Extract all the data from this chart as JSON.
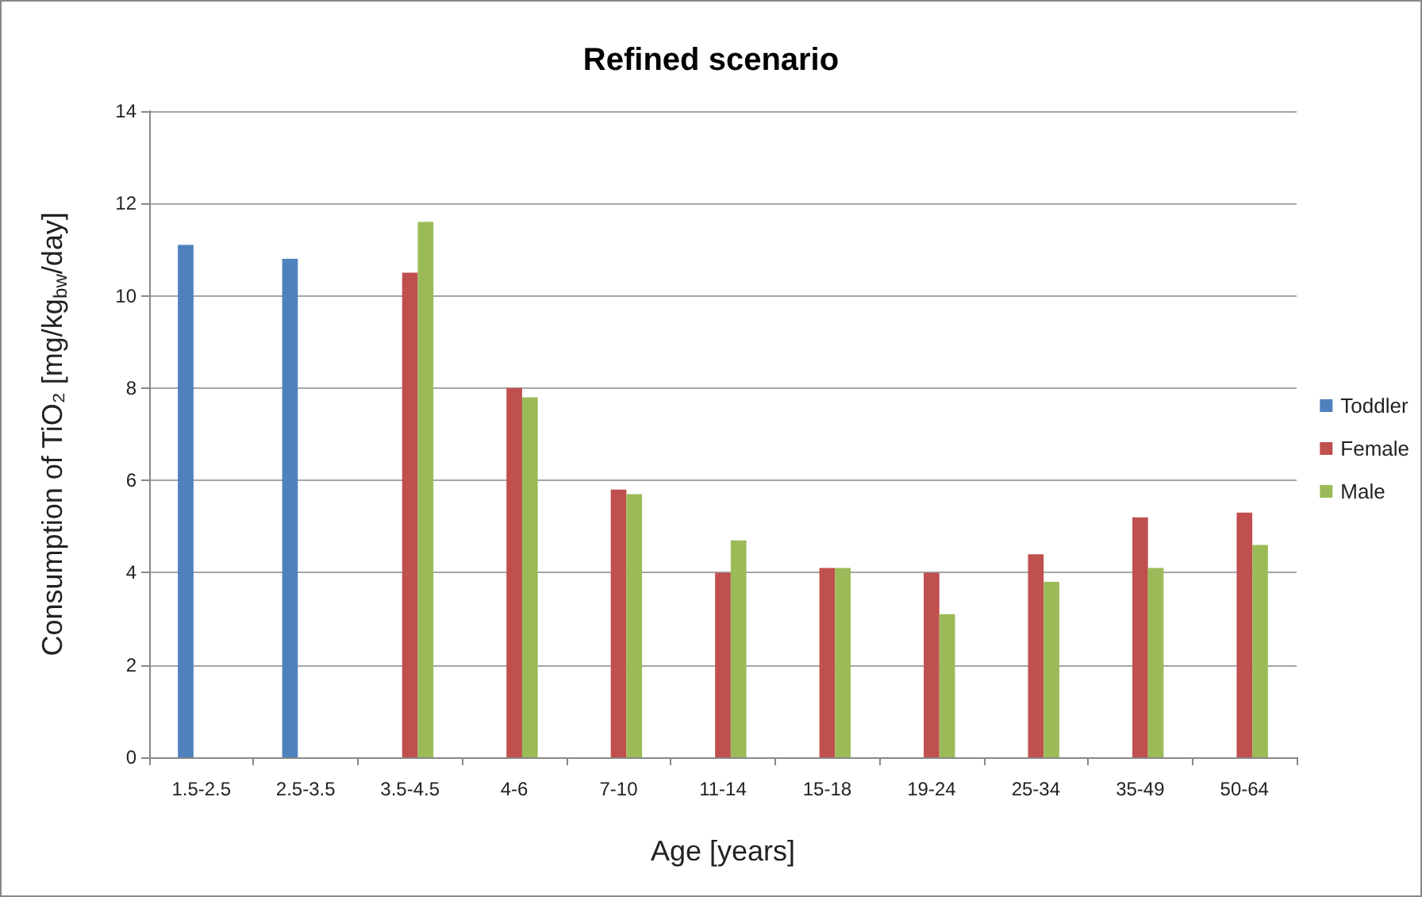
{
  "chart_data": {
    "type": "bar",
    "title": "Refined scenario",
    "xlabel": "Age [years]",
    "ylabel": "Consumption of TiO₂ [mg/kg$_{bw}$/day]",
    "categories": [
      "1.5-2.5",
      "2.5-3.5",
      "3.5-4.5",
      "4-6",
      "7-10",
      "11-14",
      "15-18",
      "19-24",
      "25-34",
      "35-49",
      "50-64"
    ],
    "series": [
      {
        "name": "Toddler",
        "color": "#4f81bd",
        "values": [
          11.1,
          10.8,
          null,
          null,
          null,
          null,
          null,
          null,
          null,
          null,
          null
        ]
      },
      {
        "name": "Female",
        "color": "#c0504d",
        "values": [
          null,
          null,
          10.5,
          8.0,
          5.8,
          4.0,
          4.1,
          4.0,
          4.4,
          5.2,
          5.3
        ]
      },
      {
        "name": "Male",
        "color": "#9bbb59",
        "values": [
          null,
          null,
          11.6,
          7.8,
          5.7,
          4.7,
          4.1,
          3.1,
          3.8,
          4.1,
          4.6
        ]
      }
    ],
    "ylim": [
      0,
      14
    ],
    "yticks": [
      0,
      2,
      4,
      6,
      8,
      10,
      12,
      14
    ],
    "grid": "y",
    "legend": "right"
  }
}
